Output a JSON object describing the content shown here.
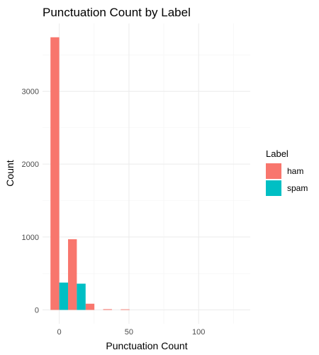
{
  "chart_data": {
    "type": "bar",
    "title": "Punctuation Count by Label",
    "xlabel": "Punctuation Count",
    "ylabel": "Count",
    "xlim": [
      -12,
      137
    ],
    "ylim": [
      -190,
      3930
    ],
    "x_ticks": [
      0,
      50,
      100
    ],
    "y_ticks": [
      0,
      1000,
      2000,
      3000
    ],
    "bin_width": 12.6,
    "grid": true,
    "legend": {
      "title": "Label",
      "placement": "right"
    },
    "series": [
      {
        "name": "ham",
        "color": "#F8766D",
        "bins": [
          {
            "x": 0,
            "value": 3740
          },
          {
            "x": 12.6,
            "value": 970
          },
          {
            "x": 25.2,
            "value": 85
          },
          {
            "x": 37.8,
            "value": 10
          },
          {
            "x": 50.4,
            "value": 8
          }
        ]
      },
      {
        "name": "spam",
        "color": "#00BFC4",
        "bins": [
          {
            "x": 0,
            "value": 375
          },
          {
            "x": 12.6,
            "value": 360
          },
          {
            "x": 25.2,
            "value": 0
          },
          {
            "x": 37.8,
            "value": 0
          },
          {
            "x": 50.4,
            "value": 0
          }
        ]
      }
    ]
  }
}
